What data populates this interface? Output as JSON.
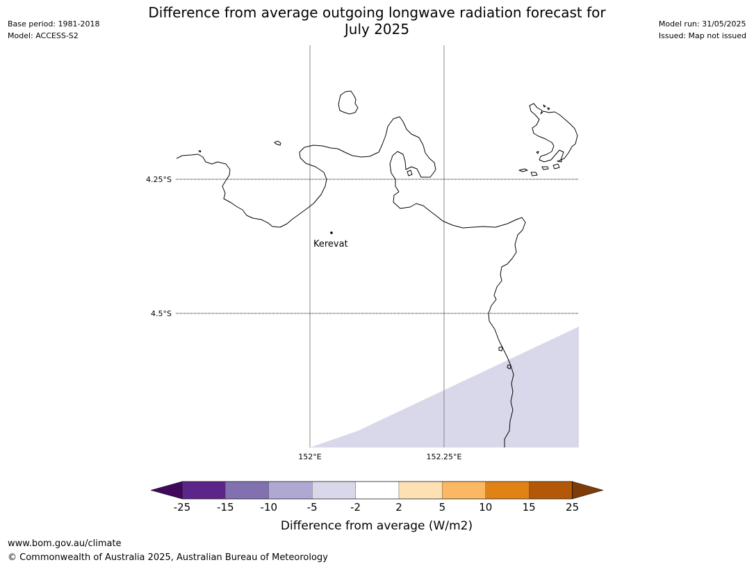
{
  "title": {
    "line1": "Difference from average outgoing longwave radiation forecast for",
    "line2": "July 2025"
  },
  "meta": {
    "base_period": "Base period: 1981-2018",
    "model": "Model: ACCESS-S2",
    "model_run": "Model run: 31/05/2025",
    "issued": "Issued: Map not issued"
  },
  "map": {
    "lat_labels": [
      "4.25°S",
      "4.5°S"
    ],
    "lon_labels": [
      "152°E",
      "152.25°E"
    ],
    "places": [
      {
        "name": "Kerevat"
      }
    ],
    "anomaly_region": {
      "category": "-5 to -2",
      "color": "#d8d8ea"
    }
  },
  "colorbar": {
    "label": "Difference from average (W/m2)",
    "ticks": [
      "-25",
      "-15",
      "-10",
      "-5",
      "-2",
      "2",
      "5",
      "10",
      "15",
      "25"
    ],
    "colors": [
      "#3f0a5c",
      "#5b2688",
      "#8171b0",
      "#afa8d2",
      "#d8d8ea",
      "#ffffff",
      "#fde0b4",
      "#fbb862",
      "#e08216",
      "#b35806",
      "#7f3b08"
    ]
  },
  "footer": {
    "website": "www.bom.gov.au/climate",
    "copyright": "© Commonwealth of Australia 2025, Australian Bureau of Meteorology"
  }
}
